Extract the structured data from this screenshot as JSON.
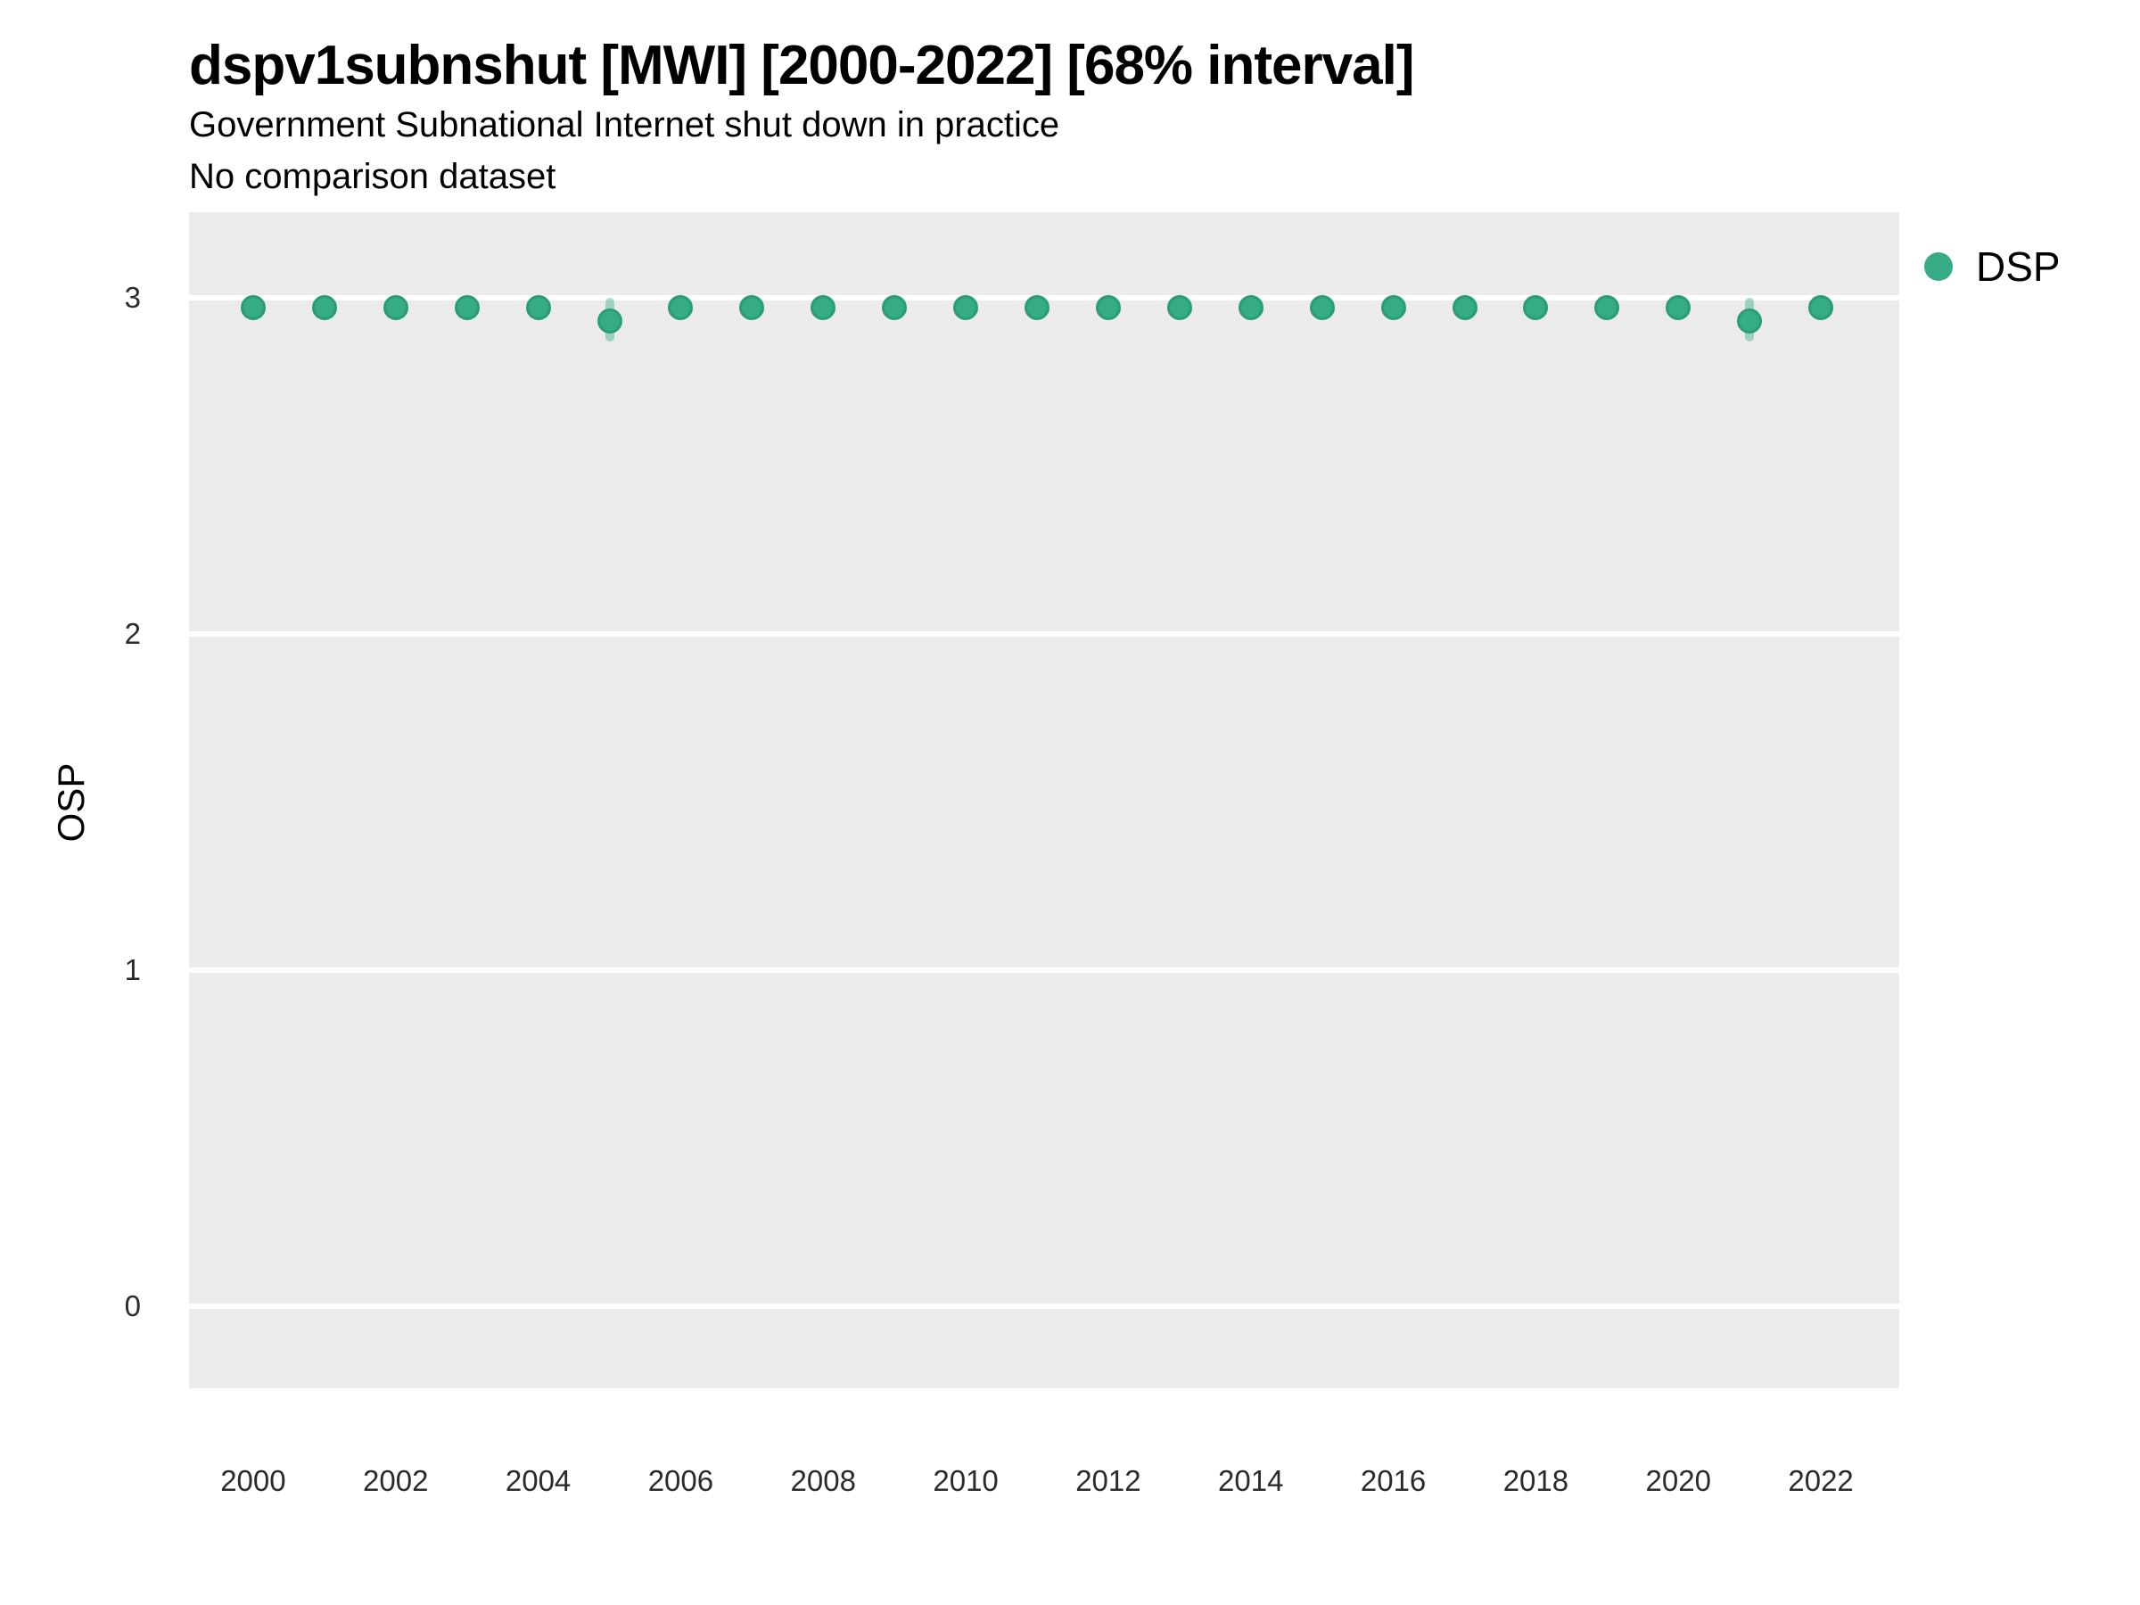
{
  "header": {
    "title": "dspv1subnshut [MWI] [2000-2022] [68% interval]",
    "subtitle": "Government Subnational Internet shut down in practice",
    "comparison_note": "No comparison dataset"
  },
  "legend": {
    "label": "DSP"
  },
  "colors": {
    "panel_background": "#EBEBEB",
    "gridline": "#FFFFFF",
    "point_fill": "#35ab86",
    "point_stroke": "#2a9c77",
    "interval_bar": "rgba(53,171,134,0.42)",
    "tick_text": "#2b2b2b"
  },
  "chart_data": {
    "type": "scatter",
    "title": "dspv1subnshut [MWI] [2000-2022] [68% interval]",
    "subtitle": "Government Subnational Internet shut down in practice",
    "comparison_note": "No comparison dataset",
    "xlabel": "",
    "ylabel": "OSP",
    "legend_position": "right",
    "grid": "major-horizontal-only",
    "xlim": [
      1999.1,
      2023.1
    ],
    "ylim": [
      -0.245,
      3.255
    ],
    "x_ticks": [
      2000,
      2002,
      2004,
      2006,
      2008,
      2010,
      2012,
      2014,
      2016,
      2018,
      2020,
      2022
    ],
    "y_ticks": [
      0,
      1,
      2,
      3
    ],
    "series": [
      {
        "name": "DSP",
        "x": [
          2000,
          2001,
          2002,
          2003,
          2004,
          2005,
          2006,
          2007,
          2008,
          2009,
          2010,
          2011,
          2012,
          2013,
          2014,
          2015,
          2016,
          2017,
          2018,
          2019,
          2020,
          2021,
          2022
        ],
        "y": [
          2.97,
          2.97,
          2.97,
          2.97,
          2.97,
          2.93,
          2.97,
          2.97,
          2.97,
          2.97,
          2.97,
          2.97,
          2.97,
          2.97,
          2.97,
          2.97,
          2.97,
          2.97,
          2.97,
          2.97,
          2.97,
          2.93,
          2.97
        ],
        "lo": [
          2.95,
          2.95,
          2.95,
          2.95,
          2.95,
          2.87,
          2.95,
          2.95,
          2.95,
          2.95,
          2.95,
          2.95,
          2.95,
          2.95,
          2.95,
          2.95,
          2.95,
          2.95,
          2.95,
          2.95,
          2.95,
          2.87,
          2.95
        ],
        "hi": [
          2.99,
          2.99,
          2.99,
          2.99,
          2.99,
          3.0,
          2.99,
          2.99,
          2.99,
          2.99,
          2.99,
          2.99,
          2.99,
          2.99,
          2.99,
          2.99,
          2.99,
          2.99,
          2.99,
          2.99,
          2.99,
          3.0,
          2.99
        ]
      }
    ]
  }
}
